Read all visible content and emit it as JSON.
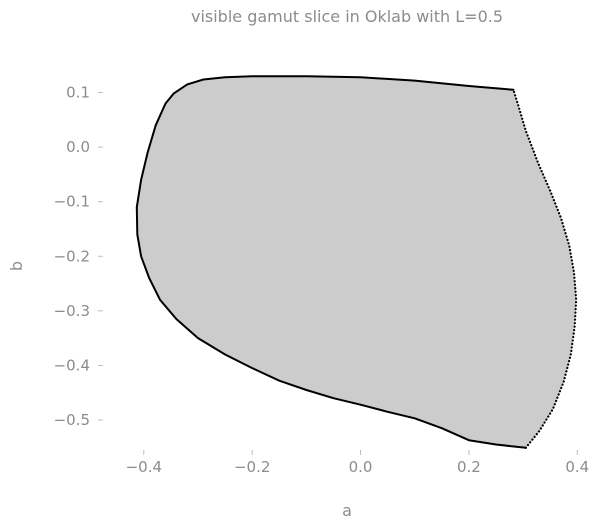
{
  "chart_data": {
    "type": "area",
    "title": "visible gamut slice in Oklab with L=0.5",
    "xlabel": "a",
    "ylabel": "b",
    "xlim": [
      -0.455,
      0.405
    ],
    "ylim": [
      -0.555,
      0.145
    ],
    "grid": false,
    "x_ticks": [
      -0.4,
      -0.2,
      0.0,
      0.2,
      0.4
    ],
    "x_tick_labels": [
      "−0.4",
      "−0.2",
      "0.0",
      "0.2",
      "0.4"
    ],
    "y_ticks": [
      0.1,
      0.0,
      -0.1,
      -0.2,
      -0.3,
      -0.4,
      -0.5
    ],
    "y_tick_labels": [
      "0.1",
      "0.0",
      "−0.1",
      "−0.2",
      "−0.3",
      "−0.4",
      "−0.5"
    ],
    "colors": {
      "fill": "#cccccc",
      "outline": "#000000",
      "text": "#8c8c8c"
    },
    "series": [
      {
        "style": "solid",
        "points": [
          [
            0.282,
            0.105
          ],
          [
            0.2,
            0.112
          ],
          [
            0.1,
            0.122
          ],
          [
            0.0,
            0.128
          ],
          [
            -0.1,
            0.13
          ],
          [
            -0.2,
            0.13
          ],
          [
            -0.25,
            0.128
          ],
          [
            -0.29,
            0.124
          ],
          [
            -0.32,
            0.115
          ],
          [
            -0.345,
            0.098
          ],
          [
            -0.36,
            0.08
          ],
          [
            -0.378,
            0.04
          ],
          [
            -0.393,
            -0.01
          ],
          [
            -0.405,
            -0.06
          ],
          [
            -0.413,
            -0.11
          ],
          [
            -0.412,
            -0.16
          ],
          [
            -0.405,
            -0.2
          ],
          [
            -0.39,
            -0.24
          ],
          [
            -0.37,
            -0.28
          ],
          [
            -0.34,
            -0.315
          ],
          [
            -0.3,
            -0.35
          ],
          [
            -0.25,
            -0.38
          ],
          [
            -0.2,
            -0.405
          ],
          [
            -0.15,
            -0.428
          ],
          [
            -0.1,
            -0.445
          ],
          [
            -0.05,
            -0.46
          ],
          [
            0.0,
            -0.472
          ],
          [
            0.05,
            -0.485
          ],
          [
            0.1,
            -0.497
          ],
          [
            0.15,
            -0.515
          ],
          [
            0.2,
            -0.537
          ],
          [
            0.25,
            -0.545
          ],
          [
            0.305,
            -0.551
          ]
        ]
      },
      {
        "style": "dotted",
        "points": [
          [
            0.305,
            -0.551
          ],
          [
            0.33,
            -0.52
          ],
          [
            0.355,
            -0.48
          ],
          [
            0.375,
            -0.43
          ],
          [
            0.388,
            -0.38
          ],
          [
            0.395,
            -0.33
          ],
          [
            0.398,
            -0.28
          ],
          [
            0.394,
            -0.23
          ],
          [
            0.385,
            -0.18
          ],
          [
            0.37,
            -0.13
          ],
          [
            0.35,
            -0.08
          ],
          [
            0.328,
            -0.03
          ],
          [
            0.305,
            0.03
          ],
          [
            0.29,
            0.08
          ],
          [
            0.282,
            0.105
          ]
        ]
      }
    ]
  }
}
